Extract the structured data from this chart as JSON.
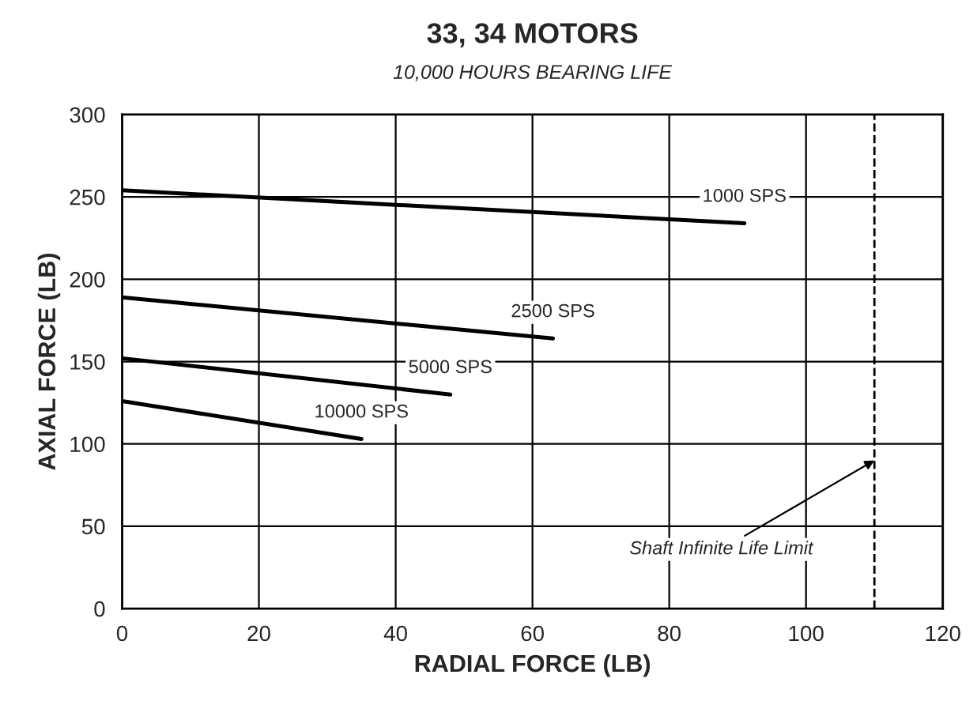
{
  "chart_data": {
    "type": "line",
    "title": "33, 34 MOTORS",
    "subtitle": "10,000 HOURS BEARING LIFE",
    "xlabel": "RADIAL FORCE (LB)",
    "ylabel": "AXIAL FORCE (LB)",
    "series": [
      {
        "name": "1000 SPS",
        "color": "#000000",
        "x": [
          0,
          91
        ],
        "values": [
          254,
          234
        ]
      },
      {
        "name": "2500 SPS",
        "color": "#000000",
        "x": [
          0,
          63
        ],
        "values": [
          189,
          164
        ]
      },
      {
        "name": "5000 SPS",
        "color": "#000000",
        "x": [
          0,
          48
        ],
        "values": [
          152,
          130
        ]
      },
      {
        "name": "10000 SPS",
        "color": "#000000",
        "x": [
          0,
          35
        ],
        "values": [
          126,
          103
        ]
      }
    ],
    "xlim": [
      0,
      120
    ],
    "xticks": [
      0,
      20,
      40,
      60,
      80,
      100,
      120
    ],
    "ylim": [
      0,
      300
    ],
    "yticks": [
      0,
      50,
      100,
      150,
      200,
      250,
      300
    ],
    "ref_lines": [
      {
        "axis": "x",
        "value": 110,
        "label": "Shaft Infinite Life Limit",
        "color": "#000000",
        "line_style": "dashed"
      }
    ],
    "grid": true,
    "legend": false,
    "marker": "none",
    "line_style": "solid"
  }
}
